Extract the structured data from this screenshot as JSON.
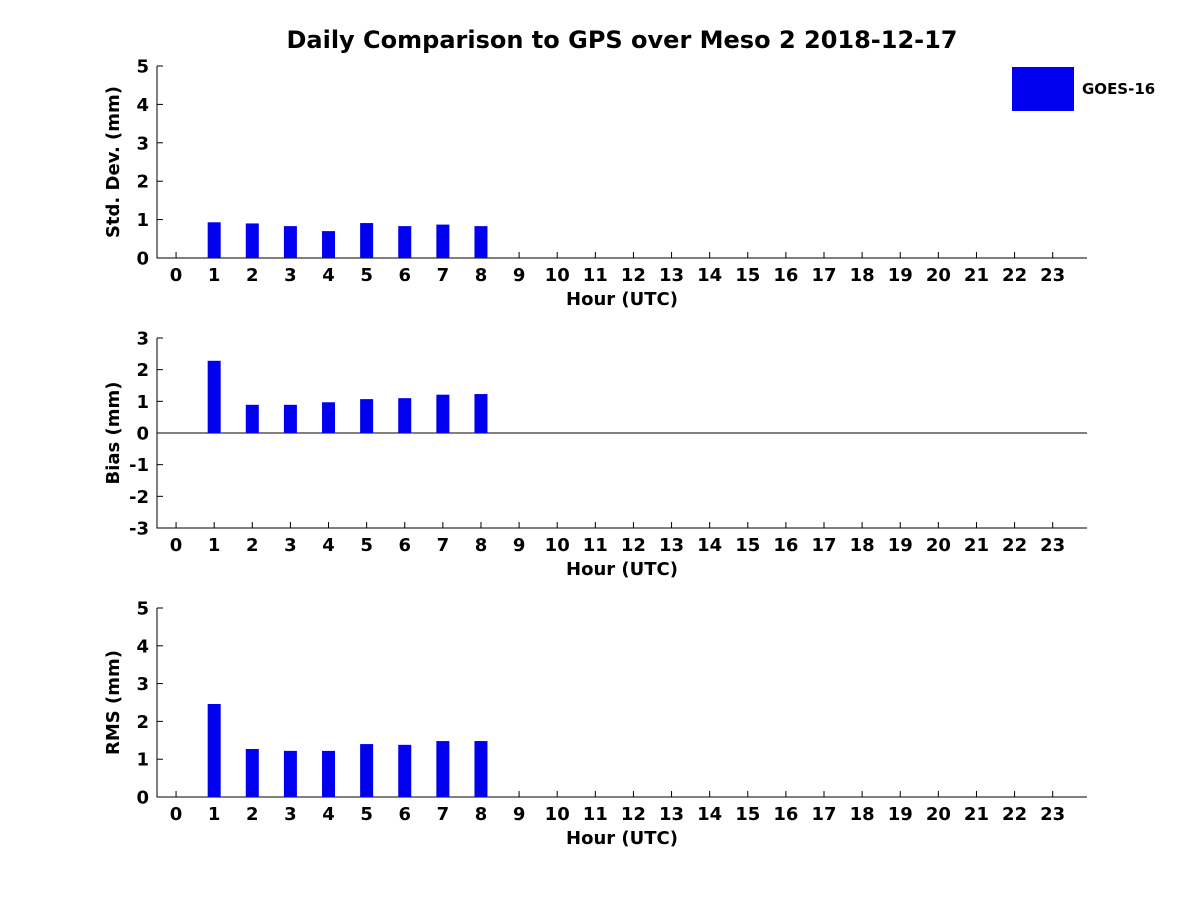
{
  "title": "Daily Comparison to GPS over Meso 2 2018-12-17",
  "legend": {
    "label": "GOES-16",
    "color": "#0000ee"
  },
  "chart_data": [
    {
      "type": "bar",
      "ylabel": "Std. Dev. (mm)",
      "xlabel": "Hour (UTC)",
      "ylim": [
        0,
        5
      ],
      "yticks": [
        0,
        1,
        2,
        3,
        4,
        5
      ],
      "xlim": [
        -0.5,
        23.9
      ],
      "xticks": [
        0,
        1,
        2,
        3,
        4,
        5,
        6,
        7,
        8,
        9,
        10,
        11,
        12,
        13,
        14,
        15,
        16,
        17,
        18,
        19,
        20,
        21,
        22,
        23
      ],
      "zero_line": false,
      "grid": false,
      "series": [
        {
          "name": "GOES-16",
          "color": "#0000ee",
          "x": [
            1,
            2,
            3,
            4,
            5,
            6,
            7,
            8
          ],
          "values": [
            0.93,
            0.9,
            0.83,
            0.7,
            0.91,
            0.83,
            0.87,
            0.83
          ]
        }
      ]
    },
    {
      "type": "bar",
      "ylabel": "Bias (mm)",
      "xlabel": "Hour (UTC)",
      "ylim": [
        -3,
        3
      ],
      "yticks": [
        -3,
        -2,
        -1,
        0,
        1,
        2,
        3
      ],
      "xlim": [
        -0.5,
        23.9
      ],
      "xticks": [
        0,
        1,
        2,
        3,
        4,
        5,
        6,
        7,
        8,
        9,
        10,
        11,
        12,
        13,
        14,
        15,
        16,
        17,
        18,
        19,
        20,
        21,
        22,
        23
      ],
      "zero_line": true,
      "grid": false,
      "series": [
        {
          "name": "GOES-16",
          "color": "#0000ee",
          "x": [
            1,
            2,
            3,
            4,
            5,
            6,
            7,
            8
          ],
          "values": [
            2.28,
            0.89,
            0.89,
            0.97,
            1.07,
            1.1,
            1.21,
            1.23
          ]
        }
      ]
    },
    {
      "type": "bar",
      "ylabel": "RMS (mm)",
      "xlabel": "Hour (UTC)",
      "ylim": [
        0,
        5
      ],
      "yticks": [
        0,
        1,
        2,
        3,
        4,
        5
      ],
      "xlim": [
        -0.5,
        23.9
      ],
      "xticks": [
        0,
        1,
        2,
        3,
        4,
        5,
        6,
        7,
        8,
        9,
        10,
        11,
        12,
        13,
        14,
        15,
        16,
        17,
        18,
        19,
        20,
        21,
        22,
        23
      ],
      "zero_line": false,
      "grid": false,
      "series": [
        {
          "name": "GOES-16",
          "color": "#0000ee",
          "x": [
            1,
            2,
            3,
            4,
            5,
            6,
            7,
            8
          ],
          "values": [
            2.46,
            1.27,
            1.22,
            1.22,
            1.4,
            1.38,
            1.48,
            1.48
          ]
        }
      ]
    }
  ]
}
